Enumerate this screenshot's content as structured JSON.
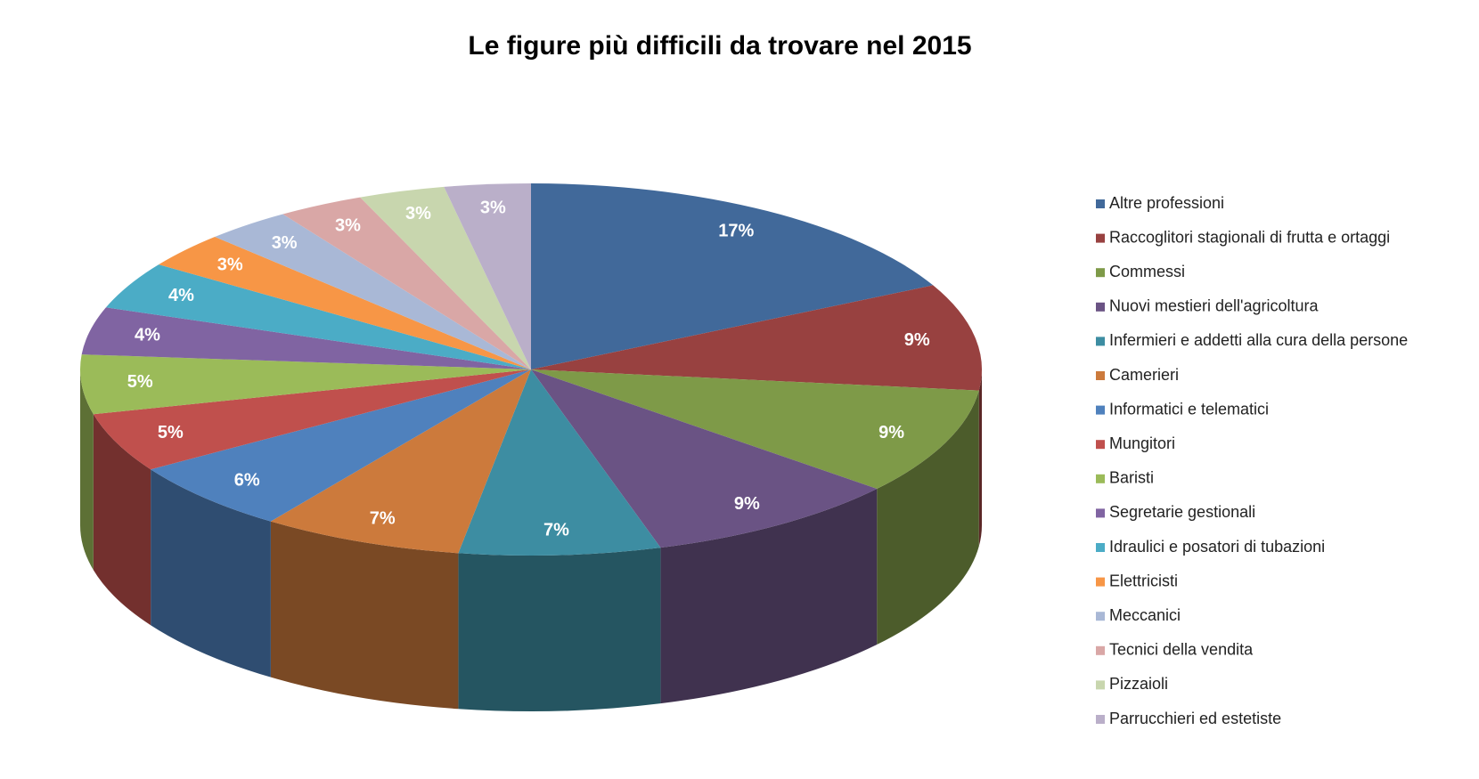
{
  "chart_data": {
    "type": "pie3d",
    "title": "Le figure più difficili da trovare nel 2015",
    "categories": [
      "Altre professioni",
      "Raccoglitori stagionali di frutta e ortaggi",
      "Commessi",
      "Nuovi mestieri dell'agricoltura",
      "Infermieri e addetti alla cura della persone",
      "Camerieri",
      "Informatici e telematici",
      "Mungitori",
      "Baristi",
      "Segretarie gestionali",
      "Idraulici e posatori di tubazioni",
      "Elettricisti",
      "Meccanici",
      "Tecnici della vendita",
      "Pizzaioli",
      "Parrucchieri ed estetiste"
    ],
    "values": [
      17,
      9,
      9,
      9,
      7,
      7,
      6,
      5,
      5,
      4,
      4,
      3,
      3,
      3,
      3,
      3
    ],
    "value_labels": [
      "17%",
      "9%",
      "9%",
      "9%",
      "7%",
      "7%",
      "6%",
      "5%",
      "5%",
      "4%",
      "4%",
      "3%",
      "3%",
      "3%",
      "3%",
      "3%"
    ],
    "colors": [
      "#41699a",
      "#984140",
      "#7e9a48",
      "#6a5384",
      "#3d8da2",
      "#cc7a3c",
      "#4f81bd",
      "#c0504d",
      "#9bbb59",
      "#8064a2",
      "#4bacc6",
      "#f79646",
      "#a9b8d6",
      "#d9a7a6",
      "#c8d6ae",
      "#baafc9"
    ],
    "legend": "right"
  }
}
